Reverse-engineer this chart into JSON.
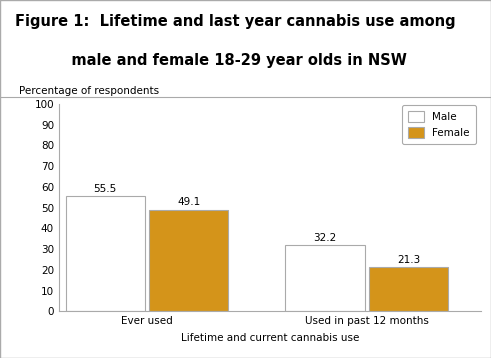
{
  "title_line1": "Figure 1:  Lifetime and last year cannabis use among",
  "title_line2": "           male and female 18-29 year olds in NSW",
  "categories": [
    "Ever used",
    "Used in past 12 months"
  ],
  "male_values": [
    55.5,
    32.2
  ],
  "female_values": [
    49.1,
    21.3
  ],
  "male_color": "#ffffff",
  "female_color": "#D4941A",
  "male_edge_color": "#aaaaaa",
  "female_edge_color": "#aaaaaa",
  "ylabel": "Percentage of respondents",
  "xlabel": "Lifetime and current cannabis use",
  "ylim": [
    0,
    100
  ],
  "yticks": [
    0,
    10,
    20,
    30,
    40,
    50,
    60,
    70,
    80,
    90,
    100
  ],
  "bar_width": 0.18,
  "legend_labels": [
    "Male",
    "Female"
  ],
  "title_fontsize": 10.5,
  "label_fontsize": 7.5,
  "tick_fontsize": 7.5,
  "value_fontsize": 7.5,
  "background_color": "#ffffff",
  "figure_background": "#ffffff",
  "header_background": "#ffffff",
  "border_color": "#aaaaaa"
}
